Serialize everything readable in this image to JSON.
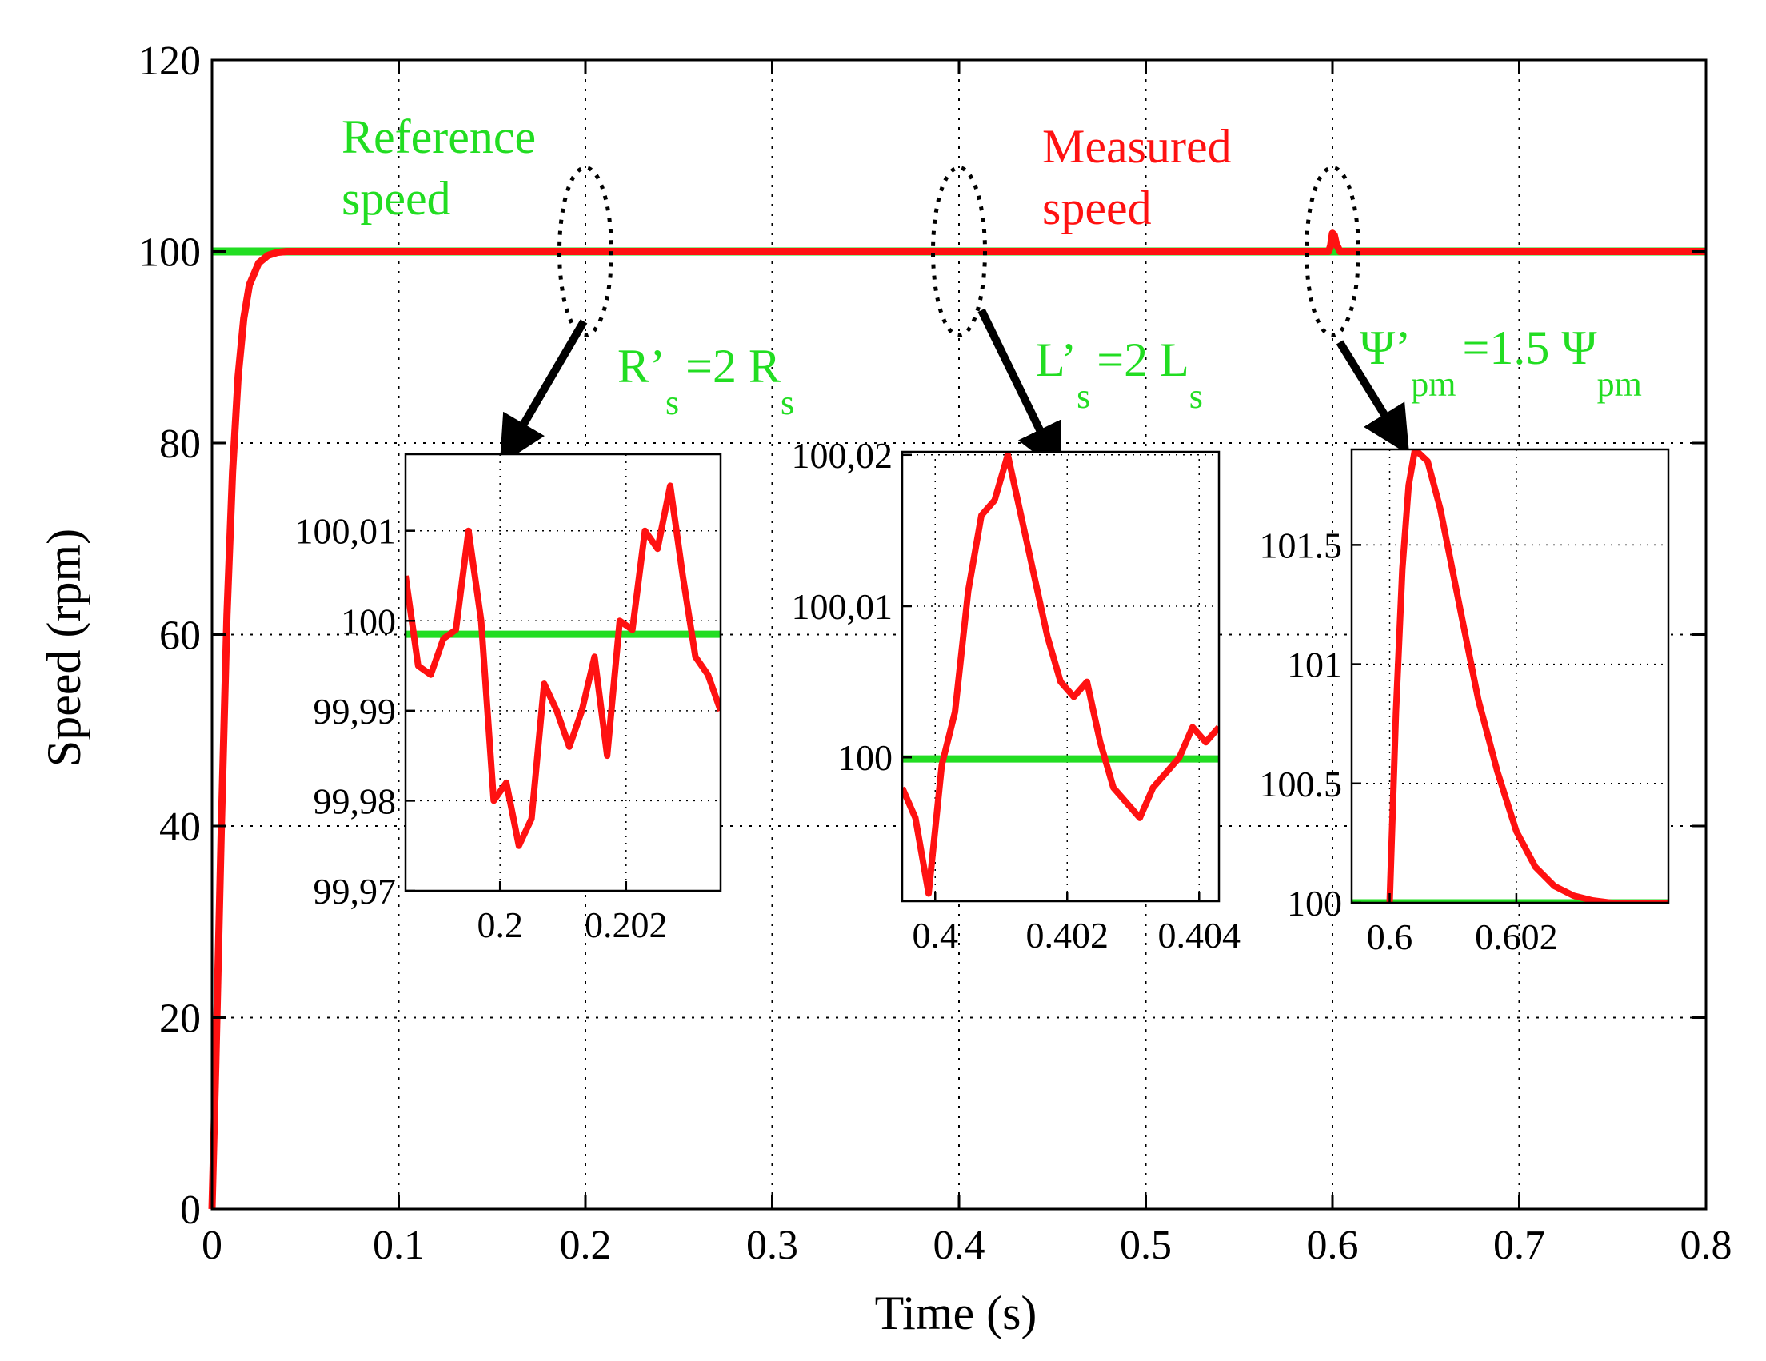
{
  "chart_data": {
    "type": "line",
    "xlabel": "Time (s)",
    "ylabel": "Speed (rpm)",
    "xlim": [
      0,
      0.8
    ],
    "ylim": [
      0,
      120
    ],
    "grid": true,
    "x_ticks": [
      "0",
      "0.1",
      "0.2",
      "0.3",
      "0.4",
      "0.5",
      "0.6",
      "0.7",
      "0.8"
    ],
    "y_ticks": [
      "0",
      "20",
      "40",
      "60",
      "80",
      "100",
      "120"
    ],
    "colors": {
      "reference": "#22dd22",
      "measured": "#ff1111",
      "annotation": "#22dd22",
      "arrow": "#000000"
    },
    "series": [
      {
        "name": "Reference speed",
        "color": "#22dd22",
        "x": [
          0,
          0.8
        ],
        "y": [
          100,
          100
        ]
      },
      {
        "name": "Measured speed",
        "color": "#ff1111",
        "x": [
          0,
          0.002,
          0.005,
          0.008,
          0.011,
          0.014,
          0.017,
          0.02,
          0.025,
          0.03,
          0.035,
          0.04,
          0.05,
          0.06,
          0.598,
          0.599,
          0.6,
          0.601,
          0.602,
          0.604,
          0.8
        ],
        "y": [
          0,
          15,
          40,
          62,
          77,
          87,
          93,
          96.5,
          98.8,
          99.6,
          99.9,
          100,
          100,
          100,
          100,
          100.6,
          101.9,
          101.7,
          100.8,
          100,
          100
        ]
      }
    ],
    "labels": {
      "reference": [
        "Reference",
        "speed"
      ],
      "measured": [
        "Measured",
        "speed"
      ]
    },
    "insets": [
      {
        "annotation": {
          "a": "R’",
          "a_sub": "s",
          "b": "=2 R",
          "b_sub": "s"
        },
        "event_time": 0.2,
        "xlim": [
          0.1985,
          0.2035
        ],
        "ylim": [
          99.97,
          100.0185
        ],
        "x_ticks": [
          0.2,
          0.202
        ],
        "x_tick_labels": [
          "0.2",
          "0.202"
        ],
        "y_ticks": [
          99.97,
          99.98,
          99.99,
          100,
          100.01
        ],
        "y_tick_labels": [
          "99,97",
          "99,98",
          "99,99",
          "100",
          "100,01"
        ],
        "reference": 99.9985,
        "measured": {
          "x": [
            0.1985,
            0.1987,
            0.1989,
            0.1991,
            0.1993,
            0.1995,
            0.1997,
            0.1999,
            0.2001,
            0.2003,
            0.2005,
            0.2007,
            0.2009,
            0.2011,
            0.2013,
            0.2015,
            0.2017,
            0.2019,
            0.2021,
            0.2023,
            0.2025,
            0.2027,
            0.2029,
            0.2031,
            0.2033,
            0.2035
          ],
          "y": [
            100.005,
            99.995,
            99.994,
            99.998,
            99.999,
            100.01,
            100.0,
            99.98,
            99.982,
            99.975,
            99.978,
            99.993,
            99.99,
            99.986,
            99.99,
            99.996,
            99.985,
            100.0,
            99.999,
            100.01,
            100.008,
            100.015,
            100.005,
            99.996,
            99.994,
            99.99
          ]
        }
      },
      {
        "annotation": {
          "a": "L’",
          "a_sub": "s",
          "b": "=2 L",
          "b_sub": "s"
        },
        "event_time": 0.4,
        "xlim": [
          0.3995,
          0.4043
        ],
        "ylim": [
          99.9905,
          100.0202
        ],
        "x_ticks": [
          0.4,
          0.402,
          0.404
        ],
        "x_tick_labels": [
          "0.4",
          "0.402",
          "0.404"
        ],
        "y_ticks": [
          100,
          100.01,
          100.02
        ],
        "y_tick_labels": [
          "100",
          "100,01",
          "100,02"
        ],
        "reference": 99.9999,
        "measured": {
          "x": [
            0.3995,
            0.3997,
            0.3999,
            0.4001,
            0.4003,
            0.4005,
            0.4007,
            0.4009,
            0.4011,
            0.4013,
            0.4015,
            0.4017,
            0.4019,
            0.4021,
            0.4023,
            0.4025,
            0.4027,
            0.4029,
            0.4031,
            0.4033,
            0.4035,
            0.4037,
            0.4039,
            0.4041,
            0.4043
          ],
          "y": [
            99.998,
            99.996,
            99.991,
            99.9995,
            100.003,
            100.011,
            100.016,
            100.017,
            100.02,
            100.016,
            100.012,
            100.008,
            100.005,
            100.004,
            100.005,
            100.001,
            99.998,
            99.997,
            99.996,
            99.998,
            99.999,
            100.0,
            100.002,
            100.001,
            100.002
          ]
        }
      },
      {
        "annotation": {
          "a": "Ψ’",
          "a_sub": "pm",
          "b": "=1.5 Ψ",
          "b_sub": "pm"
        },
        "event_time": 0.6,
        "xlim": [
          0.5994,
          0.6044
        ],
        "ylim": [
          100,
          101.9
        ],
        "x_ticks": [
          0.6,
          0.602
        ],
        "x_tick_labels": [
          "0.6",
          "0.602"
        ],
        "y_ticks": [
          100,
          100.5,
          101,
          101.5
        ],
        "y_tick_labels": [
          "100",
          "100.5",
          "101",
          "101.5"
        ],
        "reference": 100,
        "measured": {
          "x": [
            0.6,
            0.6001,
            0.6002,
            0.6003,
            0.6004,
            0.6006,
            0.6008,
            0.6011,
            0.6014,
            0.6017,
            0.602,
            0.6023,
            0.6026,
            0.6029,
            0.6032,
            0.6035,
            0.6038,
            0.6044
          ],
          "y": [
            100,
            100.8,
            101.4,
            101.75,
            101.9,
            101.85,
            101.65,
            101.25,
            100.85,
            100.55,
            100.3,
            100.15,
            100.07,
            100.03,
            100.01,
            100,
            100,
            100
          ]
        }
      }
    ]
  }
}
